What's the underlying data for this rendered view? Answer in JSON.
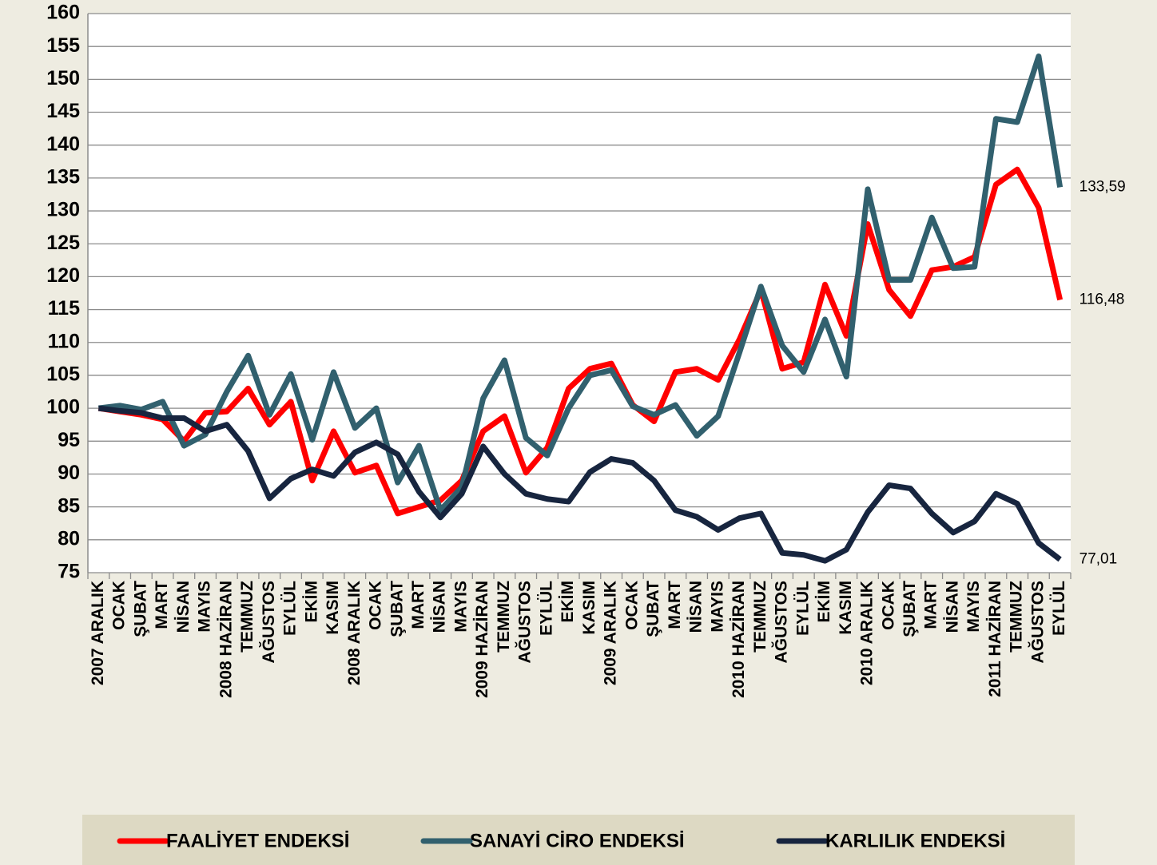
{
  "chart_data": {
    "type": "line",
    "categories": [
      "2007 ARALIK",
      "OCAK",
      "ŞUBAT",
      "MART",
      "NİSAN",
      "MAYIS",
      "2008 HAZİRAN",
      "TEMMUZ",
      "AĞUSTOS",
      "EYLÜL",
      "EKİM",
      "KASIM",
      "2008 ARALIK",
      "OCAK",
      "ŞUBAT",
      "MART",
      "NİSAN",
      "MAYIS",
      "2009 HAZİRAN",
      "TEMMUZ",
      "AĞUSTOS",
      "EYLÜL",
      "EKİM",
      "KASIM",
      "2009 ARALIK",
      "OCAK",
      "ŞUBAT",
      "MART",
      "NİSAN",
      "MAYIS",
      "2010 HAZİRAN",
      "TEMMUZ",
      "AĞUSTOS",
      "EYLÜL",
      "EKİM",
      "KASIM",
      "2010 ARALIK",
      "OCAK",
      "ŞUBAT",
      "MART",
      "NİSAN",
      "MAYIS",
      "2011 HAZİRAN",
      "TEMMUZ",
      "AĞUSTOS",
      "EYLÜL"
    ],
    "series": [
      {
        "name": "FAALİYET ENDEKSİ",
        "color": "#ff0000",
        "values": [
          100,
          99.5,
          99,
          98.3,
          95,
          99.3,
          99.5,
          103,
          97.5,
          101,
          89,
          96.5,
          90.2,
          91.3,
          84,
          85,
          86,
          89,
          96.5,
          98.8,
          90.2,
          94,
          103,
          106,
          106.8,
          100.5,
          98,
          105.5,
          106,
          104.3,
          110.5,
          118,
          106,
          107,
          118.8,
          111,
          128,
          118,
          114,
          121,
          121.5,
          123,
          134,
          136.3,
          130.5,
          116.48
        ],
        "value_labels": [
          null,
          null,
          null,
          null,
          null,
          null,
          null,
          null,
          null,
          null,
          null,
          null,
          null,
          null,
          null,
          null,
          null,
          null,
          null,
          null,
          null,
          null,
          null,
          null,
          null,
          null,
          null,
          null,
          null,
          null,
          null,
          null,
          null,
          null,
          null,
          null,
          null,
          null,
          null,
          null,
          null,
          null,
          null,
          null,
          null,
          "116,48"
        ]
      },
      {
        "name": "SANAYİ CİRO ENDEKSİ",
        "color": "#31606e",
        "values": [
          100,
          100.4,
          99.8,
          101,
          94.3,
          96,
          102.5,
          108,
          99,
          105.2,
          95.2,
          105.5,
          97,
          100,
          88.7,
          94.3,
          84.5,
          88,
          101.5,
          107.3,
          95.5,
          92.8,
          100,
          105,
          105.8,
          100.3,
          99,
          100.5,
          95.8,
          98.8,
          108.5,
          118.5,
          109.5,
          105.5,
          113.5,
          104.8,
          133.3,
          119.5,
          119.5,
          129,
          121.3,
          121.5,
          144,
          143.5,
          153.5,
          133.59
        ],
        "value_labels": [
          null,
          null,
          null,
          null,
          null,
          null,
          null,
          null,
          null,
          null,
          null,
          null,
          null,
          null,
          null,
          null,
          null,
          null,
          null,
          null,
          null,
          null,
          null,
          null,
          null,
          null,
          null,
          null,
          null,
          null,
          null,
          null,
          null,
          null,
          null,
          null,
          null,
          null,
          null,
          null,
          null,
          null,
          null,
          null,
          null,
          "133,59"
        ]
      },
      {
        "name": "KARLILIK ENDEKSİ",
        "color": "#17253f",
        "values": [
          100,
          99.6,
          99.3,
          98.5,
          98.5,
          96.5,
          97.5,
          93.5,
          86.3,
          89.3,
          90.7,
          89.7,
          93.3,
          94.8,
          93,
          87.3,
          83.4,
          87,
          94.2,
          90,
          87,
          86.2,
          85.8,
          90.3,
          92.3,
          91.7,
          89,
          84.5,
          83.5,
          81.5,
          83.3,
          84,
          78,
          77.7,
          76.8,
          78.5,
          84.2,
          88.3,
          87.8,
          84,
          81.1,
          82.8,
          87,
          85.5,
          79.5,
          77.01
        ],
        "value_labels": [
          null,
          null,
          null,
          null,
          null,
          null,
          null,
          null,
          null,
          null,
          null,
          null,
          null,
          null,
          null,
          null,
          null,
          null,
          null,
          null,
          null,
          null,
          null,
          null,
          null,
          null,
          null,
          null,
          null,
          null,
          null,
          null,
          null,
          null,
          null,
          null,
          null,
          null,
          null,
          null,
          null,
          null,
          null,
          null,
          null,
          "77,01"
        ]
      }
    ],
    "ylim": [
      75,
      160
    ],
    "yticks": [
      75,
      80,
      85,
      90,
      95,
      100,
      105,
      110,
      115,
      120,
      125,
      130,
      135,
      140,
      145,
      150,
      155,
      160
    ],
    "grid": true
  }
}
